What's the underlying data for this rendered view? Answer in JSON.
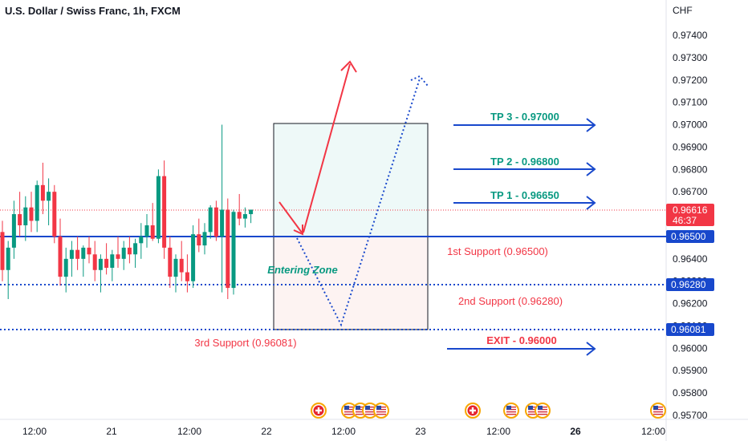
{
  "title": "U.S. Dollar / Swiss Franc, 1h, FXCM",
  "currency": "CHF",
  "chart_data": {
    "type": "candlestick",
    "ylim": [
      0.9565,
      0.975
    ],
    "y_ticks": [
      "0.97400",
      "0.97300",
      "0.97200",
      "0.97100",
      "0.97000",
      "0.96900",
      "0.96800",
      "0.96700",
      "0.96600",
      "0.96500",
      "0.96400",
      "0.96300",
      "0.96200",
      "0.96100",
      "0.96000",
      "0.95900",
      "0.95800",
      "0.95700"
    ],
    "x_tick_labels": [
      "12:00",
      "21",
      "12:00",
      "22",
      "12:00",
      "23",
      "12:00",
      "26",
      "12:00"
    ],
    "colors": {
      "up": "#089981",
      "down": "#f23645",
      "support": "#1848cc",
      "arrow_up": "#f23645",
      "dotted": "#1848cc",
      "tp": "#089981",
      "exit": "#f23645"
    },
    "candles": [
      [
        0.9652,
        0.9657,
        0.963,
        0.9635
      ],
      [
        0.9635,
        0.9648,
        0.9622,
        0.9645
      ],
      [
        0.9645,
        0.9666,
        0.964,
        0.966
      ],
      [
        0.966,
        0.967,
        0.965,
        0.9655
      ],
      [
        0.9655,
        0.9668,
        0.9648,
        0.9663
      ],
      [
        0.9663,
        0.967,
        0.9652,
        0.9657
      ],
      [
        0.9657,
        0.9675,
        0.9652,
        0.9673
      ],
      [
        0.9673,
        0.9683,
        0.966,
        0.9666
      ],
      [
        0.9666,
        0.9676,
        0.9655,
        0.967
      ],
      [
        0.967,
        0.9673,
        0.9647,
        0.965
      ],
      [
        0.965,
        0.9658,
        0.9628,
        0.9632
      ],
      [
        0.9632,
        0.9645,
        0.9625,
        0.964
      ],
      [
        0.964,
        0.9648,
        0.9632,
        0.9644
      ],
      [
        0.9644,
        0.965,
        0.9635,
        0.964
      ],
      [
        0.964,
        0.9646,
        0.9632,
        0.9645
      ],
      [
        0.9645,
        0.965,
        0.9638,
        0.9642
      ],
      [
        0.9642,
        0.9648,
        0.963,
        0.9635
      ],
      [
        0.9635,
        0.9642,
        0.9625,
        0.964
      ],
      [
        0.964,
        0.9647,
        0.9633,
        0.9636
      ],
      [
        0.9636,
        0.9644,
        0.963,
        0.9642
      ],
      [
        0.9642,
        0.965,
        0.9636,
        0.964
      ],
      [
        0.964,
        0.9648,
        0.9635,
        0.9645
      ],
      [
        0.9645,
        0.965,
        0.9638,
        0.9642
      ],
      [
        0.9642,
        0.9649,
        0.9636,
        0.9647
      ],
      [
        0.9647,
        0.9656,
        0.964,
        0.965
      ],
      [
        0.965,
        0.966,
        0.9645,
        0.9655
      ],
      [
        0.9655,
        0.9665,
        0.9648,
        0.9649
      ],
      [
        0.9649,
        0.968,
        0.9647,
        0.9677
      ],
      [
        0.9677,
        0.9684,
        0.964,
        0.9645
      ],
      [
        0.9645,
        0.965,
        0.9627,
        0.9632
      ],
      [
        0.9632,
        0.9642,
        0.9625,
        0.964
      ],
      [
        0.964,
        0.9648,
        0.963,
        0.9634
      ],
      [
        0.9634,
        0.9642,
        0.9625,
        0.963
      ],
      [
        0.963,
        0.9655,
        0.9627,
        0.9651
      ],
      [
        0.9651,
        0.9658,
        0.9643,
        0.9646
      ],
      [
        0.9646,
        0.9656,
        0.9642,
        0.9652
      ],
      [
        0.9652,
        0.9664,
        0.9649,
        0.9663
      ],
      [
        0.9663,
        0.9666,
        0.9648,
        0.965
      ],
      [
        0.965,
        0.97,
        0.9625,
        0.9662
      ],
      [
        0.9662,
        0.9667,
        0.9622,
        0.9627
      ],
      [
        0.9627,
        0.9662,
        0.9624,
        0.9661
      ],
      [
        0.9661,
        0.9669,
        0.9655,
        0.9658
      ],
      [
        0.9658,
        0.9663,
        0.9654,
        0.966
      ],
      [
        0.966,
        0.9662,
        0.9656,
        0.9662
      ]
    ],
    "support_lines": [
      0.965,
      0.9628,
      0.96081
    ],
    "current_price": 0.96616
  },
  "price_badges": {
    "current": "0.96616",
    "countdown": "46:37",
    "support1": "0.96500",
    "support2": "0.96280",
    "support3": "0.96081"
  },
  "annotations": {
    "tp3": "TP 3 - 0.97000",
    "tp2": "TP 2 - 0.96800",
    "tp1": "TP 1 - 0.96650",
    "exit": "EXIT - 0.96000",
    "support1": "1st Support (0.96500)",
    "support2": "2nd Support (0.96280)",
    "support3": "3rd Support (0.96081)",
    "entering_zone": "Entering Zone"
  },
  "event_markers": [
    "swiss-flag-icon",
    "us-flag-icon",
    "us-flag-icon",
    "us-flag-icon",
    "us-flag-icon",
    "swiss-flag-icon",
    "us-flag-icon",
    "us-flag-icon",
    "us-flag-icon",
    "us-flag-icon"
  ]
}
